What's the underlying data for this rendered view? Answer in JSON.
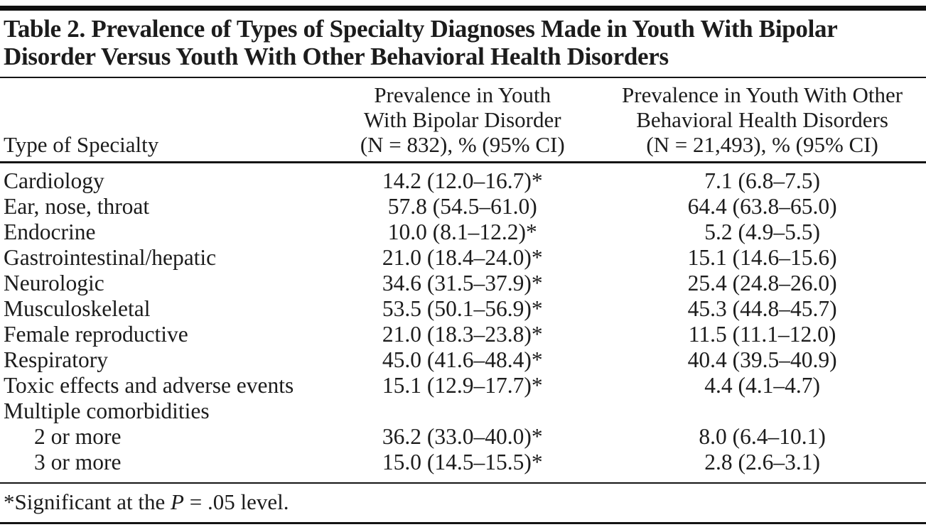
{
  "table": {
    "title_lines": [
      "Table 2. Prevalence of Types of Specialty Diagnoses Made in Youth With Bipolar",
      "Disorder Versus Youth With Other Behavioral Health Disorders"
    ],
    "columns": [
      {
        "lines": [
          "Type of Specialty"
        ]
      },
      {
        "lines": [
          "Prevalence in Youth",
          "With Bipolar Disorder",
          "(N = 832), % (95% CI)"
        ]
      },
      {
        "lines": [
          "Prevalence in Youth With Other",
          "Behavioral Health Disorders",
          "(N = 21,493), % (95% CI)"
        ]
      }
    ],
    "rows": [
      {
        "label": "Cardiology",
        "bipolar": "14.2 (12.0–16.7)*",
        "other": "7.1 (6.8–7.5)",
        "indent": false
      },
      {
        "label": "Ear, nose, throat",
        "bipolar": "57.8 (54.5–61.0)",
        "other": "64.4 (63.8–65.0)",
        "indent": false
      },
      {
        "label": "Endocrine",
        "bipolar": "10.0 (8.1–12.2)*",
        "other": "5.2 (4.9–5.5)",
        "indent": false
      },
      {
        "label": "Gastrointestinal/hepatic",
        "bipolar": "21.0 (18.4–24.0)*",
        "other": "15.1 (14.6–15.6)",
        "indent": false
      },
      {
        "label": "Neurologic",
        "bipolar": "34.6 (31.5–37.9)*",
        "other": "25.4 (24.8–26.0)",
        "indent": false
      },
      {
        "label": "Musculoskeletal",
        "bipolar": "53.5 (50.1–56.9)*",
        "other": "45.3 (44.8–45.7)",
        "indent": false
      },
      {
        "label": "Female reproductive",
        "bipolar": "21.0 (18.3–23.8)*",
        "other": "11.5 (11.1–12.0)",
        "indent": false
      },
      {
        "label": "Respiratory",
        "bipolar": "45.0 (41.6–48.4)*",
        "other": "40.4 (39.5–40.9)",
        "indent": false
      },
      {
        "label": "Toxic effects and adverse events",
        "bipolar": "15.1 (12.9–17.7)*",
        "other": "4.4 (4.1–4.7)",
        "indent": false
      },
      {
        "label": "Multiple comorbidities",
        "bipolar": "",
        "other": "",
        "indent": false
      },
      {
        "label": "2 or more",
        "bipolar": "36.2 (33.0–40.0)*",
        "other": "8.0 (6.4–10.1)",
        "indent": true
      },
      {
        "label": "3 or more",
        "bipolar": "15.0 (14.5–15.5)*",
        "other": "2.8 (2.6–3.1)",
        "indent": true
      }
    ],
    "footnote": {
      "prefix": "*Significant at the ",
      "italic_term": "P",
      "suffix": " = .05 level."
    }
  },
  "colors": {
    "background": "#ffffff",
    "text": "#1c1c1c",
    "rule": "#141414"
  },
  "chart_data": {
    "type": "table",
    "title": "Table 2. Prevalence of Types of Specialty Diagnoses Made in Youth With Bipolar Disorder Versus Youth With Other Behavioral Health Disorders",
    "columns": [
      "Type of Specialty",
      "Prevalence in Youth With Bipolar Disorder (N = 832), % (95% CI)",
      "Prevalence in Youth With Other Behavioral Health Disorders (N = 21,493), % (95% CI)"
    ],
    "rows": [
      {
        "specialty": "Cardiology",
        "bipolar_pct": 14.2,
        "bipolar_ci": [
          12.0,
          16.7
        ],
        "bipolar_significant": true,
        "other_pct": 7.1,
        "other_ci": [
          6.8,
          7.5
        ]
      },
      {
        "specialty": "Ear, nose, throat",
        "bipolar_pct": 57.8,
        "bipolar_ci": [
          54.5,
          61.0
        ],
        "bipolar_significant": false,
        "other_pct": 64.4,
        "other_ci": [
          63.8,
          65.0
        ]
      },
      {
        "specialty": "Endocrine",
        "bipolar_pct": 10.0,
        "bipolar_ci": [
          8.1,
          12.2
        ],
        "bipolar_significant": true,
        "other_pct": 5.2,
        "other_ci": [
          4.9,
          5.5
        ]
      },
      {
        "specialty": "Gastrointestinal/hepatic",
        "bipolar_pct": 21.0,
        "bipolar_ci": [
          18.4,
          24.0
        ],
        "bipolar_significant": true,
        "other_pct": 15.1,
        "other_ci": [
          14.6,
          15.6
        ]
      },
      {
        "specialty": "Neurologic",
        "bipolar_pct": 34.6,
        "bipolar_ci": [
          31.5,
          37.9
        ],
        "bipolar_significant": true,
        "other_pct": 25.4,
        "other_ci": [
          24.8,
          26.0
        ]
      },
      {
        "specialty": "Musculoskeletal",
        "bipolar_pct": 53.5,
        "bipolar_ci": [
          50.1,
          56.9
        ],
        "bipolar_significant": true,
        "other_pct": 45.3,
        "other_ci": [
          44.8,
          45.7
        ]
      },
      {
        "specialty": "Female reproductive",
        "bipolar_pct": 21.0,
        "bipolar_ci": [
          18.3,
          23.8
        ],
        "bipolar_significant": true,
        "other_pct": 11.5,
        "other_ci": [
          11.1,
          12.0
        ]
      },
      {
        "specialty": "Respiratory",
        "bipolar_pct": 45.0,
        "bipolar_ci": [
          41.6,
          48.4
        ],
        "bipolar_significant": true,
        "other_pct": 40.4,
        "other_ci": [
          39.5,
          40.9
        ]
      },
      {
        "specialty": "Toxic effects and adverse events",
        "bipolar_pct": 15.1,
        "bipolar_ci": [
          12.9,
          17.7
        ],
        "bipolar_significant": true,
        "other_pct": 4.4,
        "other_ci": [
          4.1,
          4.7
        ]
      },
      {
        "specialty": "Multiple comorbidities: 2 or more",
        "bipolar_pct": 36.2,
        "bipolar_ci": [
          33.0,
          40.0
        ],
        "bipolar_significant": true,
        "other_pct": 8.0,
        "other_ci": [
          6.4,
          10.1
        ]
      },
      {
        "specialty": "Multiple comorbidities: 3 or more",
        "bipolar_pct": 15.0,
        "bipolar_ci": [
          14.5,
          15.5
        ],
        "bipolar_significant": true,
        "other_pct": 2.8,
        "other_ci": [
          2.6,
          3.1
        ]
      }
    ],
    "footnote": "*Significant at the P = .05 level."
  }
}
